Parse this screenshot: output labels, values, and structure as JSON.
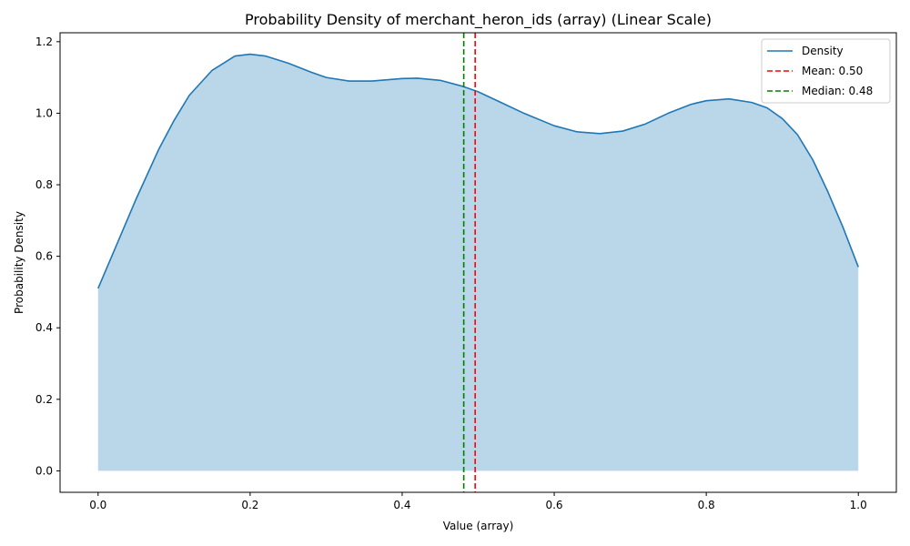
{
  "chart_data": {
    "type": "area",
    "title": "Probability Density of merchant_heron_ids (array) (Linear Scale)",
    "xlabel": "Value (array)",
    "ylabel": "Probability Density",
    "xlim": [
      -0.05,
      1.05
    ],
    "ylim": [
      -0.06,
      1.225
    ],
    "x_ticks": [
      0.0,
      0.2,
      0.4,
      0.6,
      0.8,
      1.0
    ],
    "x_tick_labels": [
      "0.0",
      "0.2",
      "0.4",
      "0.6",
      "0.8",
      "1.0"
    ],
    "y_ticks": [
      0.0,
      0.2,
      0.4,
      0.6,
      0.8,
      1.0,
      1.2
    ],
    "y_tick_labels": [
      "0.0",
      "0.2",
      "0.4",
      "0.6",
      "0.8",
      "1.0",
      "1.2"
    ],
    "grid": false,
    "legend_position": "top-right",
    "series": [
      {
        "name": "Density",
        "color": "#1f77b4",
        "fill_color": "#bad6e9",
        "x": [
          0.0,
          0.02,
          0.05,
          0.08,
          0.1,
          0.12,
          0.15,
          0.18,
          0.2,
          0.22,
          0.25,
          0.28,
          0.3,
          0.33,
          0.36,
          0.4,
          0.42,
          0.45,
          0.48,
          0.5,
          0.53,
          0.56,
          0.6,
          0.63,
          0.66,
          0.69,
          0.72,
          0.75,
          0.78,
          0.8,
          0.83,
          0.86,
          0.88,
          0.9,
          0.92,
          0.94,
          0.96,
          0.98,
          1.0
        ],
        "y": [
          0.51,
          0.61,
          0.76,
          0.9,
          0.98,
          1.05,
          1.12,
          1.16,
          1.165,
          1.16,
          1.14,
          1.115,
          1.1,
          1.09,
          1.09,
          1.097,
          1.098,
          1.092,
          1.075,
          1.06,
          1.03,
          1.0,
          0.965,
          0.948,
          0.943,
          0.95,
          0.97,
          1.0,
          1.025,
          1.035,
          1.04,
          1.03,
          1.015,
          0.985,
          0.94,
          0.87,
          0.78,
          0.68,
          0.57
        ]
      }
    ],
    "reference_lines": [
      {
        "name": "Mean: 0.50",
        "x": 0.496,
        "color": "#ff0000",
        "style": "dashed"
      },
      {
        "name": "Median: 0.48",
        "x": 0.481,
        "color": "#008000",
        "style": "dashed"
      }
    ]
  }
}
